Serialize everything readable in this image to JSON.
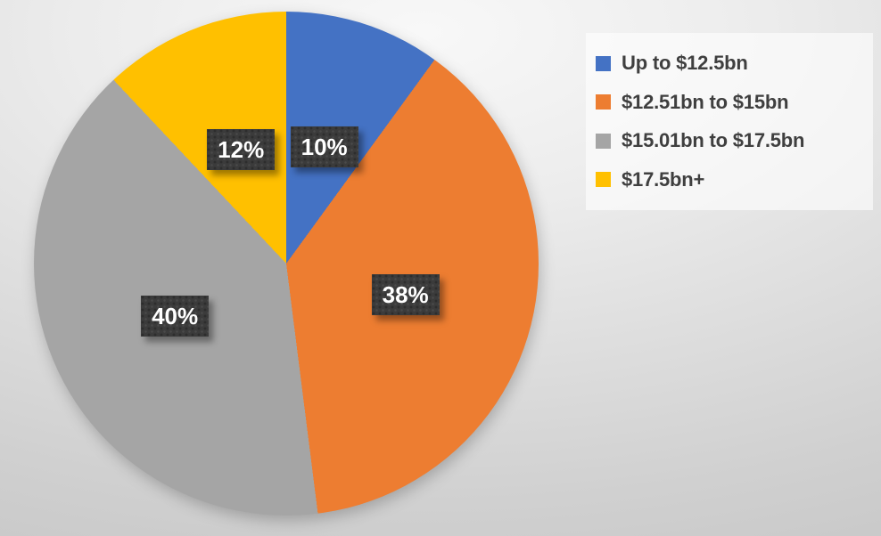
{
  "chart_data": {
    "type": "pie",
    "title": "",
    "direction": "clockwise",
    "start_angle_deg": 0,
    "legend_position": "top-right",
    "slices": [
      {
        "label": "Up to $12.5bn",
        "value": 10,
        "display": "10%",
        "color": "#4472C4"
      },
      {
        "label": "$12.51bn to $15bn",
        "value": 38,
        "display": "38%",
        "color": "#ED7D31"
      },
      {
        "label": "$15.01bn to $17.5bn",
        "value": 40,
        "display": "40%",
        "color": "#A5A5A5"
      },
      {
        "label": "$17.5bn+",
        "value": 12,
        "display": "12%",
        "color": "#FFC000"
      }
    ],
    "data_label_style": {
      "background": "#3B3B3B",
      "pattern": "dotted",
      "text_color": "#FFFFFF"
    },
    "legend_text_color": "#3F3F3F"
  }
}
